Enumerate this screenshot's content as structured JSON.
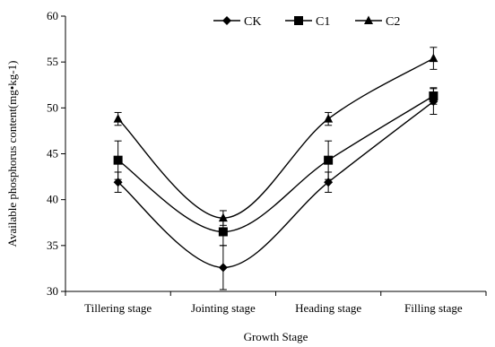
{
  "chart_data": {
    "type": "line",
    "categories": [
      "Tillering stage",
      "Jointing stage",
      "Heading stage",
      "Filling stage"
    ],
    "xlabel": "Growth Stage",
    "ylabel": "Available  phosphorus content(mg•kg-1)",
    "ylim": [
      30,
      60
    ],
    "yticks": [
      30,
      35,
      40,
      45,
      50,
      55,
      60
    ],
    "grid": false,
    "legend": "top-center",
    "smooth": true,
    "series": [
      {
        "name": "CK",
        "marker": "diamond",
        "values": [
          41.9,
          32.6,
          41.9,
          50.7
        ],
        "errors": [
          1.1,
          2.4,
          1.1,
          1.4
        ]
      },
      {
        "name": "C1",
        "marker": "square",
        "values": [
          44.3,
          36.5,
          44.3,
          51.3
        ],
        "errors": [
          2.1,
          1.5,
          2.1,
          0.9
        ]
      },
      {
        "name": "C2",
        "marker": "triangle",
        "values": [
          48.8,
          38.0,
          48.8,
          55.4
        ],
        "errors": [
          0.7,
          0.8,
          0.7,
          1.2
        ]
      }
    ],
    "colors": {
      "line": "#000000",
      "marker": "#000000"
    }
  }
}
